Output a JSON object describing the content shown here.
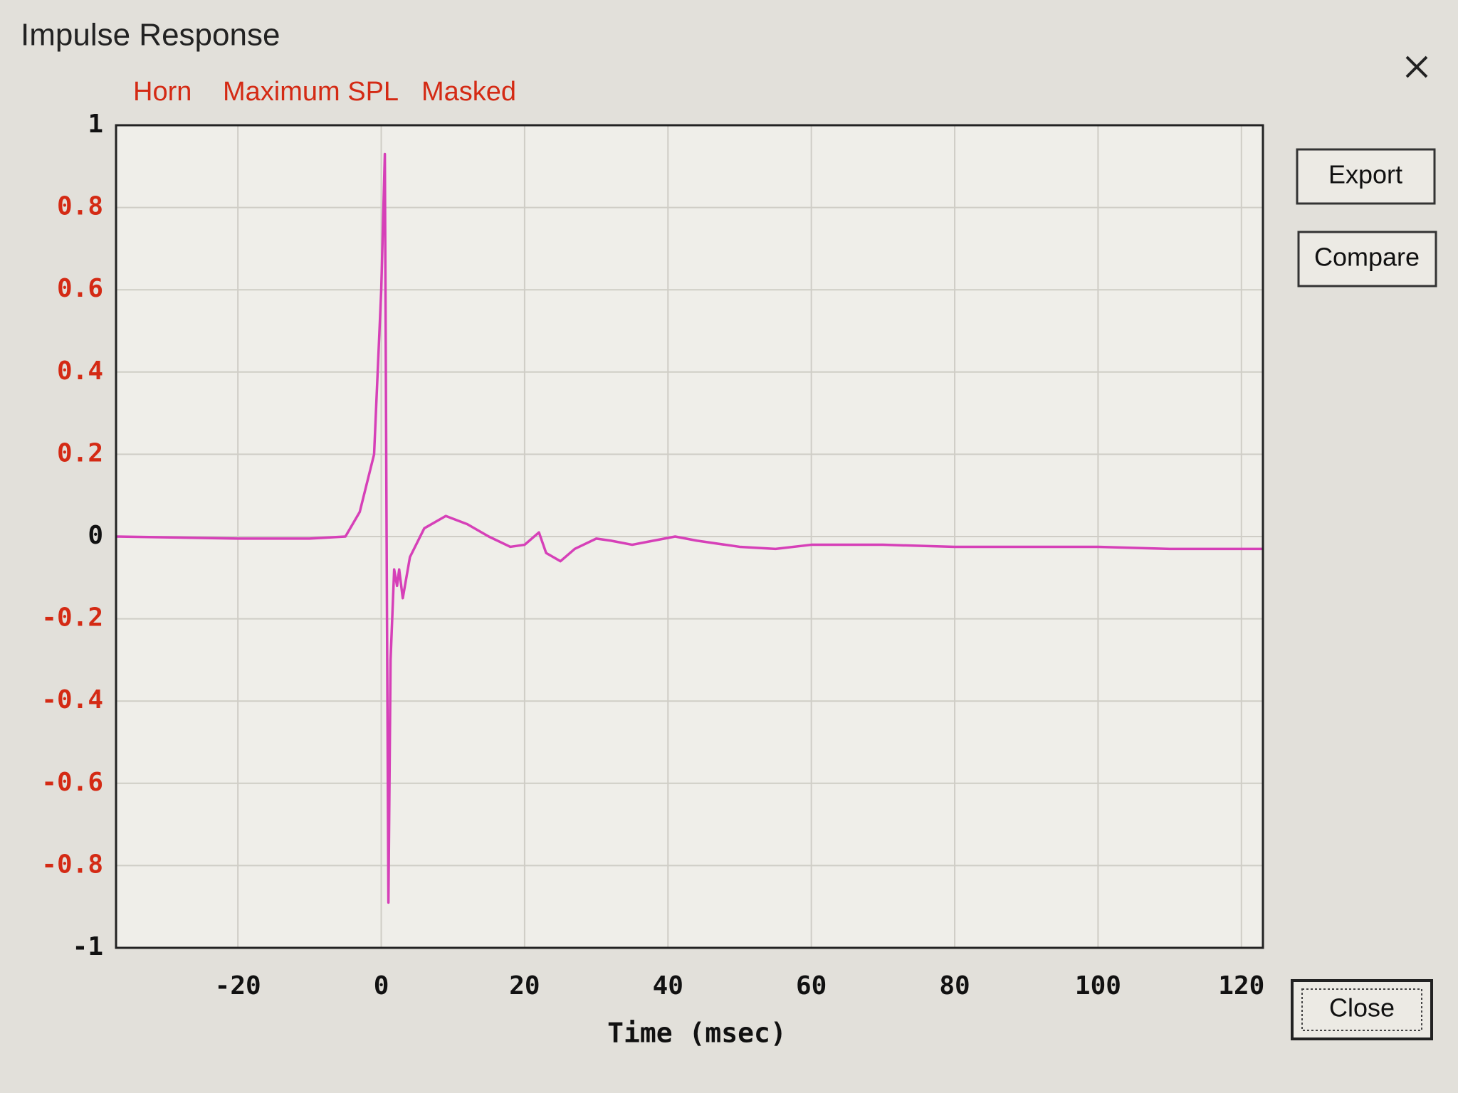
{
  "window": {
    "title": "Impulse Response",
    "menu": [
      "Horn",
      "Maximum SPL",
      "Masked"
    ],
    "buttons": [
      "Export",
      "Compare",
      "Close"
    ]
  },
  "chart_data": {
    "type": "line",
    "x_label": "Time (msec)",
    "x": [
      -37,
      -20,
      -10,
      -5,
      -3,
      -1,
      0,
      0.5,
      0.8,
      1,
      1.3,
      1.8,
      2.2,
      2.5,
      3,
      4,
      6,
      9,
      12,
      15,
      18,
      20,
      22,
      23,
      25,
      27,
      30,
      32,
      35,
      38,
      41,
      44,
      50,
      55,
      60,
      70,
      80,
      90,
      100,
      110,
      120,
      123
    ],
    "values": [
      0,
      -0.005,
      -0.005,
      0,
      0.06,
      0.2,
      0.6,
      0.93,
      -0.2,
      -0.89,
      -0.3,
      -0.08,
      -0.12,
      -0.08,
      -0.15,
      -0.05,
      0.02,
      0.05,
      0.03,
      0,
      -0.025,
      -0.02,
      0.01,
      -0.04,
      -0.06,
      -0.03,
      -0.005,
      -0.01,
      -0.02,
      -0.01,
      0,
      -0.01,
      -0.025,
      -0.03,
      -0.02,
      -0.02,
      -0.025,
      -0.025,
      -0.025,
      -0.03,
      -0.03,
      -0.03
    ],
    "color": "#d640b8",
    "xlim": [
      -37,
      123
    ],
    "xticks": [
      -20,
      0,
      20,
      40,
      60,
      80,
      100,
      120
    ],
    "ylim": [
      -1,
      1
    ],
    "yticks": [
      -1,
      -0.8,
      -0.6,
      -0.4,
      -0.2,
      0,
      0.2,
      0.4,
      0.6,
      0.8,
      1
    ],
    "ytick_color": "#d42a14",
    "grid": true
  }
}
